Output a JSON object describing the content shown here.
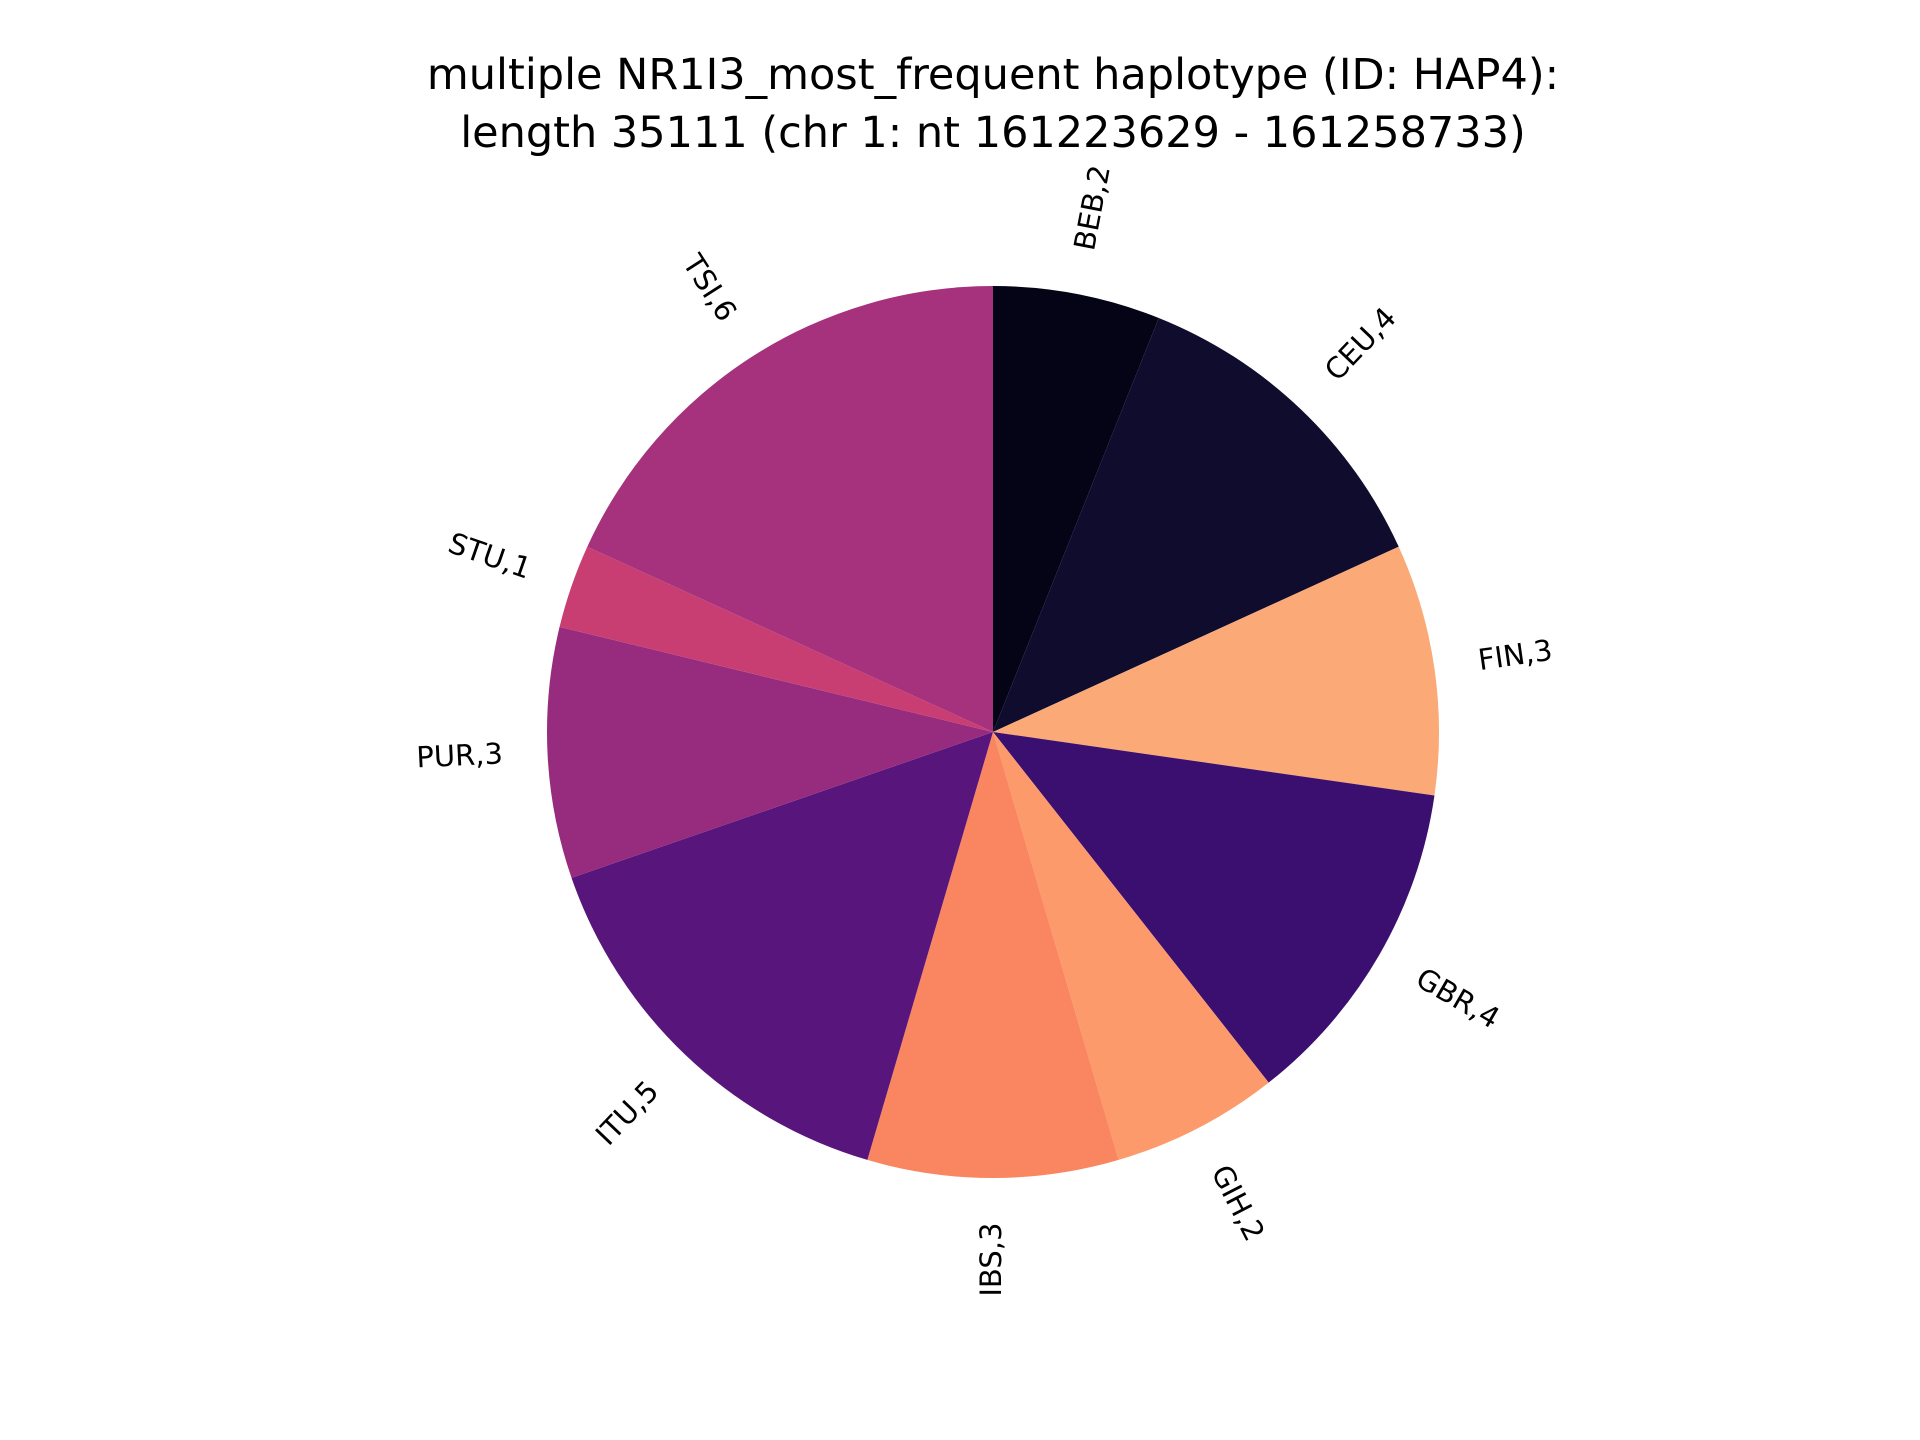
{
  "chart_data": {
    "type": "pie",
    "title": "multiple NR1I3_most_frequent haplotype (ID: HAP4):",
    "subtitle": "length 35111 (chr 1: nt 161223629 - 161258733)",
    "start_direction": "top",
    "direction": "clockwise",
    "slices": [
      {
        "label": "BEB,2",
        "value": 2,
        "color": "#050417"
      },
      {
        "label": "CEU,4",
        "value": 4,
        "color": "#100c2e"
      },
      {
        "label": "FIN,3",
        "value": 3,
        "color": "#fba977"
      },
      {
        "label": "GBR,4",
        "value": 4,
        "color": "#3b0f6f"
      },
      {
        "label": "GIH,2",
        "value": 2,
        "color": "#fc9a6b"
      },
      {
        "label": "IBS,3",
        "value": 3,
        "color": "#fa8561"
      },
      {
        "label": "ITU,5",
        "value": 5,
        "color": "#58157b"
      },
      {
        "label": "PUR,3",
        "value": 3,
        "color": "#972c7f"
      },
      {
        "label": "STU,1",
        "value": 1,
        "color": "#c83e73"
      },
      {
        "label": "TSI,6",
        "value": 6,
        "color": "#a6317c"
      }
    ]
  }
}
